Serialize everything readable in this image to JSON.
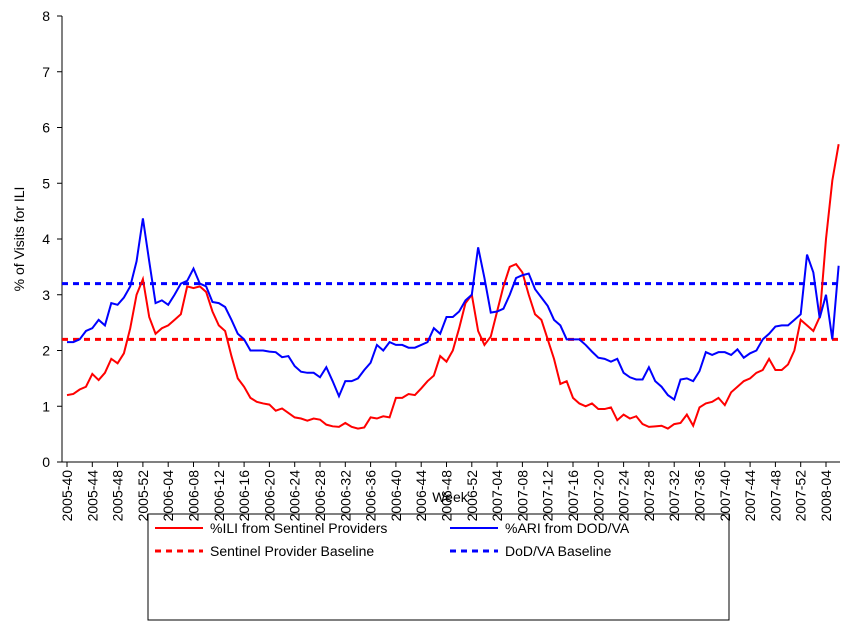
{
  "chart_data": {
    "type": "line",
    "y_label": "% of Visits for ILI",
    "x_label": "Week",
    "ylim": [
      0,
      8
    ],
    "yticks": [
      0,
      1,
      2,
      3,
      4,
      5,
      6,
      7,
      8
    ],
    "categories": [
      "2005-40",
      null,
      null,
      null,
      "2005-44",
      null,
      null,
      null,
      "2005-48",
      null,
      null,
      null,
      "2005-52",
      null,
      null,
      null,
      "2006-04",
      null,
      null,
      null,
      "2006-08",
      null,
      null,
      null,
      "2006-12",
      null,
      null,
      null,
      "2006-16",
      null,
      null,
      null,
      "2006-20",
      null,
      null,
      null,
      "2006-24",
      null,
      null,
      null,
      "2006-28",
      null,
      null,
      null,
      "2006-32",
      null,
      null,
      null,
      "2006-36",
      null,
      null,
      null,
      "2006-40",
      null,
      null,
      null,
      "2006-44",
      null,
      null,
      null,
      "2006-48",
      null,
      null,
      null,
      "2006-52",
      null,
      null,
      null,
      "2007-04",
      null,
      null,
      null,
      "2007-08",
      null,
      null,
      null,
      "2007-12",
      null,
      null,
      null,
      "2007-16",
      null,
      null,
      null,
      "2007-20",
      null,
      null,
      null,
      "2007-24",
      null,
      null,
      null,
      "2007-28",
      null,
      null,
      null,
      "2007-32",
      null,
      null,
      null,
      "2007-36",
      null,
      null,
      null,
      "2007-40",
      null,
      null,
      null,
      "2007-44",
      null,
      null,
      null,
      "2007-48",
      null,
      null,
      null,
      "2007-52",
      null,
      null,
      null,
      "2008-04",
      null,
      null
    ],
    "series": [
      {
        "name": "%ILI from Sentinel Providers",
        "color": "#ff0000",
        "values": [
          1.2,
          1.22,
          1.3,
          1.35,
          1.58,
          1.47,
          1.6,
          1.85,
          1.77,
          1.95,
          2.4,
          3.0,
          3.28,
          2.6,
          2.3,
          2.4,
          2.45,
          2.55,
          2.65,
          3.15,
          3.12,
          3.15,
          3.05,
          2.7,
          2.45,
          2.35,
          1.9,
          1.5,
          1.35,
          1.15,
          1.08,
          1.05,
          1.03,
          0.92,
          0.96,
          0.88,
          0.8,
          0.78,
          0.74,
          0.78,
          0.76,
          0.67,
          0.64,
          0.63,
          0.7,
          0.63,
          0.6,
          0.62,
          0.8,
          0.78,
          0.82,
          0.8,
          1.15,
          1.15,
          1.22,
          1.2,
          1.32,
          1.45,
          1.55,
          1.9,
          1.8,
          2.0,
          2.4,
          2.85,
          3.0,
          2.35,
          2.1,
          2.25,
          2.7,
          3.15,
          3.5,
          3.55,
          3.4,
          3.0,
          2.65,
          2.55,
          2.2,
          1.85,
          1.4,
          1.45,
          1.15,
          1.05,
          1.0,
          1.05,
          0.95,
          0.95,
          0.98,
          0.75,
          0.85,
          0.78,
          0.82,
          0.68,
          0.63,
          0.64,
          0.65,
          0.6,
          0.68,
          0.7,
          0.85,
          0.65,
          0.98,
          1.05,
          1.08,
          1.15,
          1.02,
          1.25,
          1.35,
          1.45,
          1.5,
          1.6,
          1.65,
          1.85,
          1.65,
          1.65,
          1.75,
          2.0,
          2.55,
          2.45,
          2.35,
          2.6,
          4.0,
          5.05,
          5.7
        ]
      },
      {
        "name": "%ARI from DOD/VA",
        "color": "#0000ff",
        "values": [
          2.15,
          2.15,
          2.2,
          2.35,
          2.4,
          2.55,
          2.45,
          2.85,
          2.82,
          2.95,
          3.15,
          3.6,
          4.37,
          3.6,
          2.85,
          2.9,
          2.82,
          3.0,
          3.2,
          3.25,
          3.47,
          3.2,
          3.15,
          2.87,
          2.85,
          2.78,
          2.55,
          2.3,
          2.2,
          2.0,
          2.0,
          2.0,
          1.98,
          1.97,
          1.88,
          1.9,
          1.72,
          1.62,
          1.6,
          1.6,
          1.52,
          1.7,
          1.45,
          1.18,
          1.45,
          1.45,
          1.5,
          1.65,
          1.78,
          2.1,
          2.0,
          2.15,
          2.1,
          2.1,
          2.05,
          2.05,
          2.1,
          2.15,
          2.4,
          2.3,
          2.6,
          2.6,
          2.7,
          2.9,
          3.0,
          3.85,
          3.3,
          2.68,
          2.7,
          2.75,
          3.0,
          3.3,
          3.35,
          3.38,
          3.1,
          2.95,
          2.8,
          2.55,
          2.45,
          2.2,
          2.2,
          2.2,
          2.1,
          1.98,
          1.87,
          1.85,
          1.8,
          1.85,
          1.6,
          1.52,
          1.48,
          1.48,
          1.7,
          1.45,
          1.35,
          1.2,
          1.12,
          1.48,
          1.5,
          1.45,
          1.63,
          1.97,
          1.92,
          1.97,
          1.97,
          1.92,
          2.02,
          1.87,
          1.95,
          2.0,
          2.2,
          2.3,
          2.43,
          2.45,
          2.45,
          2.55,
          2.65,
          3.72,
          3.4,
          2.58,
          3.0,
          2.2,
          3.52
        ]
      }
    ],
    "baselines": [
      {
        "name": "Sentinel Provider Baseline",
        "color": "#ff0000",
        "value": 2.2
      },
      {
        "name": "DoD/VA Baseline",
        "color": "#0000ff",
        "value": 3.2
      }
    ]
  }
}
